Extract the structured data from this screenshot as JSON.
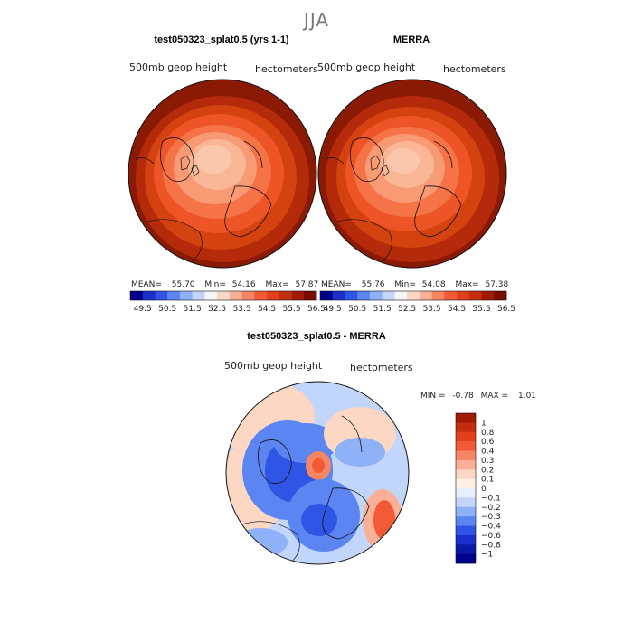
{
  "season_title": "JJA",
  "panels": [
    {
      "title": "test050323_splat0.5 (yrs 1-1)",
      "variable": "500mb geop height",
      "units": "hectometers",
      "mean_label": "MEAN=",
      "mean": "55.70",
      "min_label": "Min=",
      "min": "54.16",
      "max_label": "Max=",
      "max": "57.87"
    },
    {
      "title": "MERRA",
      "variable": "500mb geop height",
      "units": "hectometers",
      "mean_label": "MEAN=",
      "mean": "55.76",
      "min_label": "Min=",
      "min": "54.08",
      "max_label": "Max=",
      "max": "57.38"
    },
    {
      "title": "test050323_splat0.5 - MERRA",
      "variable": "500mb geop height",
      "units": "hectometers",
      "min_label": "MIN =",
      "min": "-0.78",
      "max_label": "MAX =",
      "max": "1.01"
    }
  ],
  "chart_data": [
    {
      "type": "heatmap",
      "projection": "north polar stereographic",
      "title": "test050323_splat0.5 (yrs 1-1)",
      "colorbar": {
        "ticks": [
          "49.5",
          "50.5",
          "51.5",
          "52.5",
          "53.5",
          "54.5",
          "55.5",
          "56.5"
        ],
        "colors": [
          "#00008b",
          "#1a2fc9",
          "#2f55e6",
          "#5b86f2",
          "#8fb1f7",
          "#c2d6fb",
          "#f5f5f5",
          "#fbd7c4",
          "#f9b096",
          "#f68563",
          "#f25a36",
          "#e3401a",
          "#c42d0e",
          "#a01a06",
          "#7a0d02"
        ]
      },
      "stats": {
        "mean": 55.7,
        "min": 54.16,
        "max": 57.87
      }
    },
    {
      "type": "heatmap",
      "projection": "north polar stereographic",
      "title": "MERRA",
      "colorbar": {
        "ticks": [
          "49.5",
          "50.5",
          "51.5",
          "52.5",
          "53.5",
          "54.5",
          "55.5",
          "56.5"
        ],
        "colors": [
          "#00008b",
          "#1a2fc9",
          "#2f55e6",
          "#5b86f2",
          "#8fb1f7",
          "#c2d6fb",
          "#f5f5f5",
          "#fbd7c4",
          "#f9b096",
          "#f68563",
          "#f25a36",
          "#e3401a",
          "#c42d0e",
          "#a01a06",
          "#7a0d02"
        ]
      },
      "stats": {
        "mean": 55.76,
        "min": 54.08,
        "max": 57.38
      }
    },
    {
      "type": "heatmap",
      "projection": "north polar stereographic",
      "title": "test050323_splat0.5 - MERRA",
      "colorbar": {
        "ticks": [
          "1",
          "0.8",
          "0.6",
          "0.4",
          "0.3",
          "0.2",
          "0.1",
          "0",
          "−0.1",
          "−0.2",
          "−0.3",
          "−0.4",
          "−0.6",
          "−0.8",
          "−1"
        ],
        "colors": [
          "#a01a06",
          "#c42d0e",
          "#e3401a",
          "#f25a36",
          "#f68563",
          "#f9b096",
          "#fbd7c4",
          "#fff0e6",
          "#e6effc",
          "#c2d6fb",
          "#8fb1f7",
          "#5b86f2",
          "#2f55e6",
          "#1a2fc9",
          "#0a1aa6",
          "#00008b"
        ]
      },
      "stats": {
        "min": -0.78,
        "max": 1.01
      }
    }
  ]
}
